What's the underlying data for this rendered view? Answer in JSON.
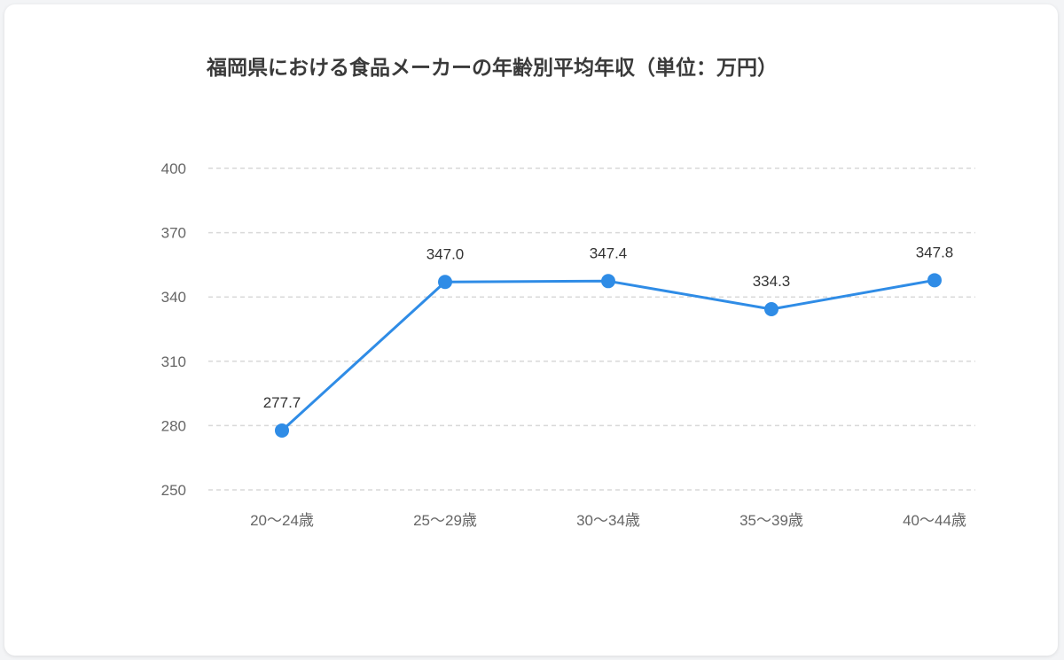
{
  "chart_data": {
    "type": "line",
    "title": "福岡県における食品メーカーの年齢別平均年収（単位：万円）",
    "xlabel": "",
    "ylabel": "",
    "categories": [
      "20〜24歳",
      "25〜29歳",
      "30〜34歳",
      "35〜39歳",
      "40〜44歳"
    ],
    "values": [
      277.7,
      347.0,
      347.4,
      334.3,
      347.8
    ],
    "data_labels": [
      "277.7",
      "347.0",
      "347.4",
      "334.3",
      "347.8"
    ],
    "ylim": [
      250,
      400
    ],
    "yticks": [
      250,
      280,
      310,
      340,
      370,
      400
    ],
    "grid": true,
    "line_color": "#2f8ce6",
    "grid_color": "#d9d9d9"
  }
}
